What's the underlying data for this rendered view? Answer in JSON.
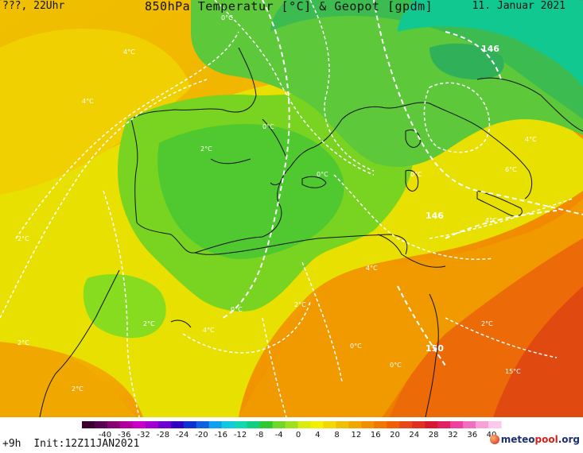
{
  "header": {
    "left": "???, 22Uhr",
    "center": "850hPa Temperatur [°C] & Geopot [gpdm]",
    "right": "11. Januar 2021"
  },
  "footer": {
    "lead": "+9h",
    "init": "Init:12Z11JAN2021",
    "logo_a": "meteo",
    "logo_b": "pool",
    "logo_c": ".org"
  },
  "colorbar": {
    "ticks": [
      "-40",
      "-36",
      "-32",
      "-28",
      "-24",
      "-20",
      "-16",
      "-12",
      "-8",
      "-4",
      "0",
      "4",
      "8",
      "12",
      "16",
      "20",
      "24",
      "28",
      "32",
      "36",
      "40"
    ],
    "colors": [
      "#3a0030",
      "#5a0050",
      "#8a0070",
      "#b000a0",
      "#c800c8",
      "#a000d0",
      "#7000d0",
      "#3000c0",
      "#1030d0",
      "#1060e0",
      "#10a0f0",
      "#10c8e0",
      "#10d8b0",
      "#10d080",
      "#30c830",
      "#70d828",
      "#a0e020",
      "#d8ec10",
      "#f0f000",
      "#f0d800",
      "#f0c000",
      "#f0a800",
      "#f09000",
      "#f07800",
      "#f06000",
      "#e84818",
      "#e03020",
      "#d81830",
      "#e02060",
      "#f040a0",
      "#f070c0",
      "#f8a0d8",
      "#fcc8ec"
    ]
  },
  "isobar_labels": [
    "146",
    "146",
    "150"
  ],
  "temperature_labels": [
    "0°C",
    "4°C",
    "4°C",
    "0°C",
    "2°C",
    "0°C",
    "0°C",
    "2°C",
    "4°C",
    "4°C",
    "0°C",
    "2°C",
    "2°C",
    "2°C",
    "4°C",
    "0°C",
    "0°C",
    "2°C",
    "4°C",
    "6°C",
    "15°C",
    "2°C"
  ]
}
